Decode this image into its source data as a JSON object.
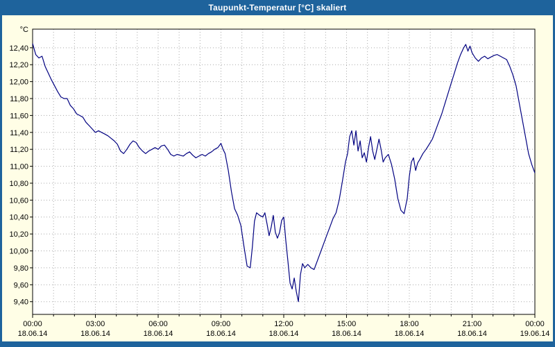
{
  "window": {
    "title": "Taupunkt-Temperatur [°C] skaliert",
    "title_bar_color": "#1e639c",
    "background_color": "#fffee6",
    "border_color": "#1e639c"
  },
  "chart_data": {
    "type": "line",
    "title": "Taupunkt-Temperatur [°C] skaliert",
    "unit_label": "°C",
    "line_color": "#000080",
    "grid": true,
    "grid_color": "#a8a8a8",
    "plot_background": "#ffffff",
    "x_unit": "hours",
    "x_range": [
      0,
      24
    ],
    "y_range": [
      9.25,
      12.62
    ],
    "y_ticks": [
      {
        "value": 12.4,
        "label": "12,40"
      },
      {
        "value": 12.2,
        "label": "12,20"
      },
      {
        "value": 12.0,
        "label": "12,00"
      },
      {
        "value": 11.8,
        "label": "11,80"
      },
      {
        "value": 11.6,
        "label": "11,60"
      },
      {
        "value": 11.4,
        "label": "11,40"
      },
      {
        "value": 11.2,
        "label": "11,20"
      },
      {
        "value": 11.0,
        "label": "11,00"
      },
      {
        "value": 10.8,
        "label": "10,80"
      },
      {
        "value": 10.6,
        "label": "10,60"
      },
      {
        "value": 10.4,
        "label": "10,40"
      },
      {
        "value": 10.2,
        "label": "10,20"
      },
      {
        "value": 10.0,
        "label": "10,00"
      },
      {
        "value": 9.8,
        "label": "9,80"
      },
      {
        "value": 9.6,
        "label": "9,60"
      },
      {
        "value": 9.4,
        "label": "9,40"
      }
    ],
    "x_ticks": [
      {
        "hour": 0,
        "time": "00:00",
        "date": "18.06.14"
      },
      {
        "hour": 3,
        "time": "03:00",
        "date": "18.06.14"
      },
      {
        "hour": 6,
        "time": "06:00",
        "date": "18.06.14"
      },
      {
        "hour": 9,
        "time": "09:00",
        "date": "18.06.14"
      },
      {
        "hour": 12,
        "time": "12:00",
        "date": "18.06.14"
      },
      {
        "hour": 15,
        "time": "15:00",
        "date": "18.06.14"
      },
      {
        "hour": 18,
        "time": "18:00",
        "date": "18.06.14"
      },
      {
        "hour": 21,
        "time": "21:00",
        "date": "18.06.14"
      },
      {
        "hour": 24,
        "time": "00:00",
        "date": "19.06.14"
      }
    ],
    "points": [
      [
        0,
        12.45
      ],
      [
        0.15,
        12.32
      ],
      [
        0.3,
        12.28
      ],
      [
        0.45,
        12.3
      ],
      [
        0.6,
        12.18
      ],
      [
        0.75,
        12.1
      ],
      [
        0.9,
        12.02
      ],
      [
        1.05,
        11.95
      ],
      [
        1.2,
        11.88
      ],
      [
        1.35,
        11.82
      ],
      [
        1.5,
        11.8
      ],
      [
        1.65,
        11.8
      ],
      [
        1.8,
        11.72
      ],
      [
        1.95,
        11.68
      ],
      [
        2.1,
        11.62
      ],
      [
        2.25,
        11.6
      ],
      [
        2.4,
        11.58
      ],
      [
        2.55,
        11.52
      ],
      [
        2.7,
        11.48
      ],
      [
        2.85,
        11.44
      ],
      [
        3.0,
        11.4
      ],
      [
        3.15,
        11.42
      ],
      [
        3.3,
        11.4
      ],
      [
        3.45,
        11.38
      ],
      [
        3.6,
        11.36
      ],
      [
        3.75,
        11.33
      ],
      [
        3.9,
        11.3
      ],
      [
        4.05,
        11.26
      ],
      [
        4.2,
        11.18
      ],
      [
        4.35,
        11.15
      ],
      [
        4.5,
        11.2
      ],
      [
        4.65,
        11.26
      ],
      [
        4.8,
        11.3
      ],
      [
        4.95,
        11.28
      ],
      [
        5.1,
        11.22
      ],
      [
        5.25,
        11.18
      ],
      [
        5.4,
        11.15
      ],
      [
        5.55,
        11.18
      ],
      [
        5.7,
        11.2
      ],
      [
        5.85,
        11.22
      ],
      [
        6.0,
        11.2
      ],
      [
        6.15,
        11.24
      ],
      [
        6.3,
        11.25
      ],
      [
        6.45,
        11.2
      ],
      [
        6.6,
        11.14
      ],
      [
        6.75,
        11.12
      ],
      [
        6.9,
        11.14
      ],
      [
        7.05,
        11.13
      ],
      [
        7.2,
        11.12
      ],
      [
        7.35,
        11.15
      ],
      [
        7.5,
        11.17
      ],
      [
        7.65,
        11.13
      ],
      [
        7.8,
        11.1
      ],
      [
        7.95,
        11.12
      ],
      [
        8.1,
        11.14
      ],
      [
        8.25,
        11.12
      ],
      [
        8.4,
        11.15
      ],
      [
        8.55,
        11.17
      ],
      [
        8.7,
        11.2
      ],
      [
        8.85,
        11.22
      ],
      [
        9.0,
        11.27
      ],
      [
        9.1,
        11.2
      ],
      [
        9.2,
        11.15
      ],
      [
        9.35,
        10.95
      ],
      [
        9.5,
        10.7
      ],
      [
        9.65,
        10.5
      ],
      [
        9.8,
        10.42
      ],
      [
        9.95,
        10.3
      ],
      [
        10.1,
        10.05
      ],
      [
        10.25,
        9.82
      ],
      [
        10.4,
        9.8
      ],
      [
        10.5,
        10.05
      ],
      [
        10.6,
        10.35
      ],
      [
        10.7,
        10.45
      ],
      [
        10.85,
        10.42
      ],
      [
        11.0,
        10.4
      ],
      [
        11.1,
        10.45
      ],
      [
        11.2,
        10.32
      ],
      [
        11.3,
        10.18
      ],
      [
        11.4,
        10.28
      ],
      [
        11.5,
        10.42
      ],
      [
        11.6,
        10.22
      ],
      [
        11.7,
        10.15
      ],
      [
        11.8,
        10.22
      ],
      [
        11.9,
        10.36
      ],
      [
        12.0,
        10.4
      ],
      [
        12.1,
        10.12
      ],
      [
        12.2,
        9.88
      ],
      [
        12.3,
        9.62
      ],
      [
        12.4,
        9.55
      ],
      [
        12.5,
        9.68
      ],
      [
        12.6,
        9.52
      ],
      [
        12.7,
        9.4
      ],
      [
        12.8,
        9.72
      ],
      [
        12.9,
        9.85
      ],
      [
        13.0,
        9.8
      ],
      [
        13.15,
        9.84
      ],
      [
        13.3,
        9.8
      ],
      [
        13.45,
        9.78
      ],
      [
        13.6,
        9.88
      ],
      [
        13.75,
        9.98
      ],
      [
        13.9,
        10.08
      ],
      [
        14.05,
        10.18
      ],
      [
        14.2,
        10.28
      ],
      [
        14.35,
        10.38
      ],
      [
        14.5,
        10.45
      ],
      [
        14.65,
        10.6
      ],
      [
        14.8,
        10.82
      ],
      [
        14.95,
        11.05
      ],
      [
        15.05,
        11.15
      ],
      [
        15.15,
        11.35
      ],
      [
        15.25,
        11.42
      ],
      [
        15.35,
        11.25
      ],
      [
        15.45,
        11.42
      ],
      [
        15.55,
        11.18
      ],
      [
        15.65,
        11.3
      ],
      [
        15.75,
        11.1
      ],
      [
        15.85,
        11.16
      ],
      [
        15.95,
        11.05
      ],
      [
        16.05,
        11.22
      ],
      [
        16.15,
        11.35
      ],
      [
        16.25,
        11.18
      ],
      [
        16.35,
        11.08
      ],
      [
        16.45,
        11.2
      ],
      [
        16.55,
        11.32
      ],
      [
        16.65,
        11.2
      ],
      [
        16.75,
        11.05
      ],
      [
        16.85,
        11.1
      ],
      [
        17.0,
        11.14
      ],
      [
        17.15,
        11.02
      ],
      [
        17.3,
        10.85
      ],
      [
        17.45,
        10.62
      ],
      [
        17.6,
        10.48
      ],
      [
        17.75,
        10.44
      ],
      [
        17.9,
        10.62
      ],
      [
        18.0,
        10.88
      ],
      [
        18.1,
        11.05
      ],
      [
        18.2,
        11.1
      ],
      [
        18.3,
        10.95
      ],
      [
        18.4,
        11.04
      ],
      [
        18.5,
        11.08
      ],
      [
        18.65,
        11.15
      ],
      [
        18.8,
        11.2
      ],
      [
        18.95,
        11.26
      ],
      [
        19.1,
        11.32
      ],
      [
        19.25,
        11.42
      ],
      [
        19.4,
        11.52
      ],
      [
        19.55,
        11.62
      ],
      [
        19.7,
        11.74
      ],
      [
        19.85,
        11.86
      ],
      [
        20.0,
        11.98
      ],
      [
        20.15,
        12.1
      ],
      [
        20.3,
        12.22
      ],
      [
        20.45,
        12.32
      ],
      [
        20.6,
        12.4
      ],
      [
        20.7,
        12.44
      ],
      [
        20.8,
        12.36
      ],
      [
        20.9,
        12.42
      ],
      [
        21.0,
        12.34
      ],
      [
        21.15,
        12.28
      ],
      [
        21.3,
        12.24
      ],
      [
        21.45,
        12.28
      ],
      [
        21.6,
        12.3
      ],
      [
        21.75,
        12.27
      ],
      [
        21.9,
        12.29
      ],
      [
        22.05,
        12.31
      ],
      [
        22.2,
        12.32
      ],
      [
        22.35,
        12.3
      ],
      [
        22.5,
        12.28
      ],
      [
        22.65,
        12.26
      ],
      [
        22.8,
        12.18
      ],
      [
        22.95,
        12.08
      ],
      [
        23.1,
        11.95
      ],
      [
        23.25,
        11.75
      ],
      [
        23.4,
        11.55
      ],
      [
        23.55,
        11.35
      ],
      [
        23.7,
        11.15
      ],
      [
        23.85,
        11.02
      ],
      [
        24.0,
        10.92
      ]
    ]
  }
}
